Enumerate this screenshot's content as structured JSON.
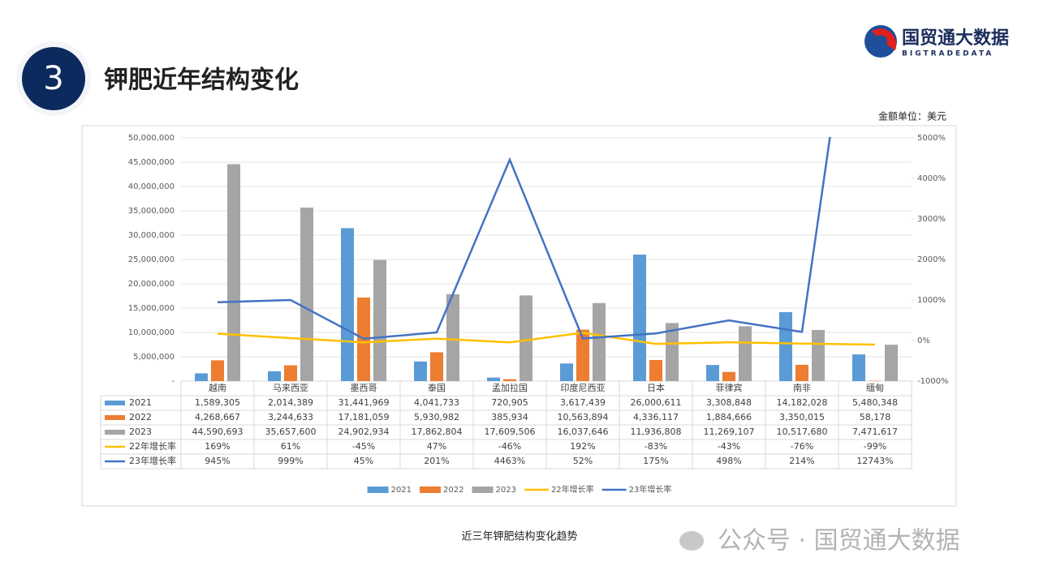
{
  "header": {
    "number": "3",
    "title": "钾肥近年结构变化",
    "logo": "国贸通大数据",
    "logo_sub": "BIGTRADEDATA"
  },
  "unit": "金额单位：美元",
  "caption": "近三年钾肥结构变化趋势",
  "watermark": "公众号 · 国贸通大数据",
  "chart_data": {
    "type": "bar",
    "categories": [
      "越南",
      "马来西亚",
      "墨西哥",
      "泰国",
      "孟加拉国",
      "印度尼西亚",
      "日本",
      "菲律宾",
      "南非",
      "缅甸"
    ],
    "series": [
      {
        "name": "2021",
        "color": "#5b9bd5",
        "values": [
          1589305,
          2014389,
          31441969,
          4041733,
          720905,
          3617439,
          26000611,
          3308848,
          14182028,
          5480348
        ],
        "value_labels": [
          "1,589,305",
          "2,014,389",
          "31,441,969",
          "4,041,733",
          "720,905",
          "3,617,439",
          "26,000,611",
          "3,308,848",
          "14,182,028",
          "5,480,348"
        ]
      },
      {
        "name": "2022",
        "color": "#ed7d31",
        "values": [
          4268667,
          3244633,
          17181059,
          5930982,
          385934,
          10563894,
          4336117,
          1884666,
          3350015,
          58178
        ],
        "value_labels": [
          "4,268,667",
          "3,244,633",
          "17,181,059",
          "5,930,982",
          "385,934",
          "10,563,894",
          "4,336,117",
          "1,884,666",
          "3,350,015",
          "58,178"
        ]
      },
      {
        "name": "2023",
        "color": "#a5a5a5",
        "values": [
          44590693,
          35657600,
          24902934,
          17862804,
          17609506,
          16037646,
          11936808,
          11269107,
          10517680,
          7471617
        ],
        "value_labels": [
          "44,590,693",
          "35,657,600",
          "24,902,934",
          "17,862,804",
          "17,609,506",
          "16,037,646",
          "11,936,808",
          "11,269,107",
          "10,517,680",
          "7,471,617"
        ]
      },
      {
        "name": "22年增长率",
        "type": "line",
        "axis": "y2",
        "color": "#ffc000",
        "values": [
          169,
          61,
          -45,
          47,
          -46,
          192,
          -83,
          -43,
          -76,
          -99
        ],
        "value_labels": [
          "169%",
          "61%",
          "-45%",
          "47%",
          "-46%",
          "192%",
          "-83%",
          "-43%",
          "-76%",
          "-99%"
        ]
      },
      {
        "name": "23年增长率",
        "type": "line",
        "axis": "y2",
        "color": "#4472c4",
        "values": [
          945,
          999,
          45,
          201,
          4463,
          52,
          175,
          498,
          214,
          12743
        ],
        "value_labels": [
          "945%",
          "999%",
          "45%",
          "201%",
          "4463%",
          "52%",
          "175%",
          "498%",
          "214%",
          "12743%"
        ]
      }
    ],
    "ylim": [
      0,
      50000000
    ],
    "yticks": [
      {
        "value": 0,
        "label": "-"
      },
      {
        "value": 5000000,
        "label": "5,000,000"
      },
      {
        "value": 10000000,
        "label": "10,000,000"
      },
      {
        "value": 15000000,
        "label": "15,000,000"
      },
      {
        "value": 20000000,
        "label": "20,000,000"
      },
      {
        "value": 25000000,
        "label": "25,000,000"
      },
      {
        "value": 30000000,
        "label": "30,000,000"
      },
      {
        "value": 35000000,
        "label": "35,000,000"
      },
      {
        "value": 40000000,
        "label": "40,000,000"
      },
      {
        "value": 45000000,
        "label": "45,000,000"
      },
      {
        "value": 50000000,
        "label": "50,000,000"
      }
    ],
    "y2lim": [
      -1000,
      5000
    ],
    "y2ticks": [
      {
        "value": -1000,
        "label": "-1000%"
      },
      {
        "value": 0,
        "label": "0%"
      },
      {
        "value": 1000,
        "label": "1000%"
      },
      {
        "value": 2000,
        "label": "2000%"
      },
      {
        "value": 3000,
        "label": "3000%"
      },
      {
        "value": 4000,
        "label": "4000%"
      },
      {
        "value": 5000,
        "label": "5000%"
      }
    ],
    "grid": true,
    "legend": "bottom"
  }
}
